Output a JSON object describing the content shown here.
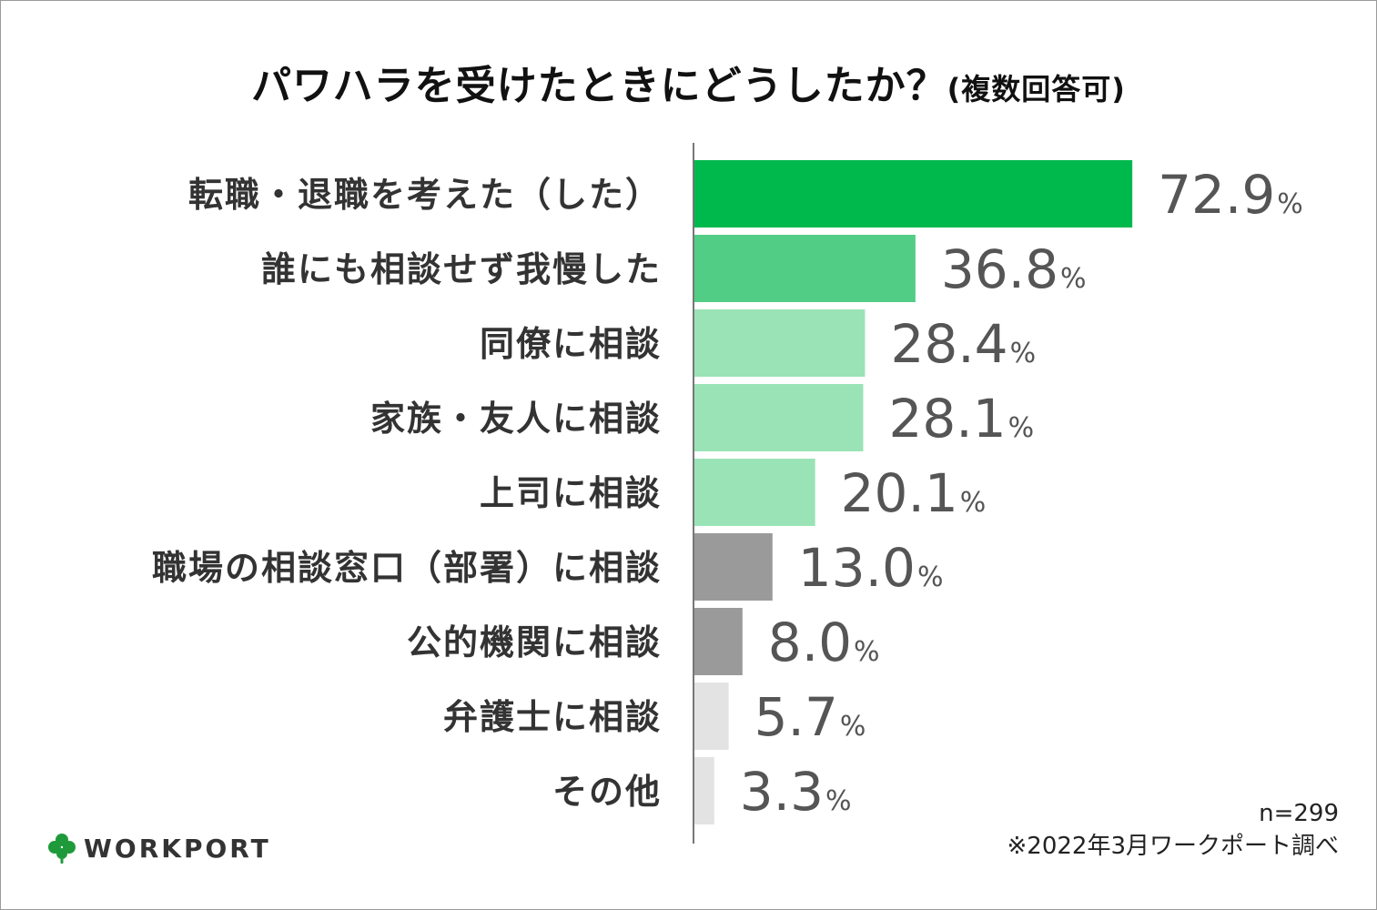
{
  "title": "パワハラを受けたときにどうしたか？",
  "title_note": "(複数回答可)",
  "chart_data": {
    "type": "bar",
    "orientation": "horizontal",
    "categories": [
      "転職・退職を考えた（した）",
      "誰にも相談せず我慢した",
      "同僚に相談",
      "家族・友人に相談",
      "上司に相談",
      "職場の相談窓口（部署）に相談",
      "公的機関に相談",
      "弁護士に相談",
      "その他"
    ],
    "values": [
      72.9,
      36.8,
      28.4,
      28.1,
      20.1,
      13.0,
      8.0,
      5.7,
      3.3
    ],
    "value_labels": [
      "72.9",
      "36.8",
      "28.4",
      "28.1",
      "20.1",
      "13.0",
      "8.0",
      "5.7",
      "3.3"
    ],
    "unit": "%",
    "colors": [
      "#00b94c",
      "#52cd85",
      "#9ae3b6",
      "#9ae3b6",
      "#9ae3b6",
      "#9a9a9a",
      "#9a9a9a",
      "#e3e3e3",
      "#e3e3e3"
    ],
    "axis_color": "#777777",
    "grid": false,
    "legend": "none"
  },
  "footnote": {
    "sample": "n=299",
    "source": "※2022年3月ワークポート調べ"
  },
  "logo": {
    "text": "WORKPORT",
    "icon": "clover-icon",
    "icon_color": "#1f9a3a"
  }
}
